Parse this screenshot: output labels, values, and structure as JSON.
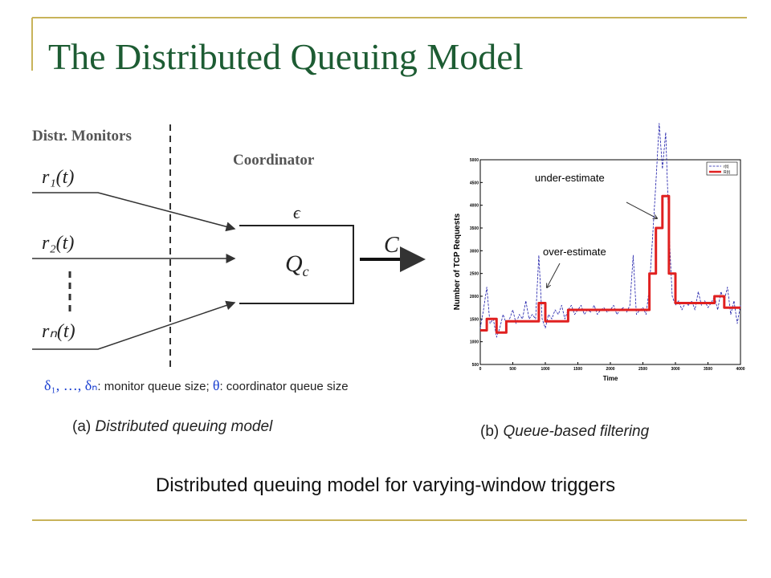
{
  "header": {
    "title": "The Distributed Queuing Model"
  },
  "diagram": {
    "monitors_label": "Distr. Monitors",
    "coordinator_label": "Coordinator",
    "inputs": [
      "r₁(t)",
      "r₂(t)",
      "rₙ(t)"
    ],
    "epsilon": "ϵ",
    "queue": {
      "symbol": "Q",
      "subscript": "c"
    },
    "output": "C",
    "note": [
      "δ₁, …, δₙ",
      ": monitor queue size; ",
      "θ",
      ": coordinator queue size"
    ]
  },
  "captions": {
    "a": {
      "label": "(a) ",
      "text": "Distributed queuing model"
    },
    "b": {
      "label": "(b) ",
      "text": "Queue-based filtering"
    },
    "main": "Distributed queuing model for varying-window triggers"
  },
  "chart_data": {
    "type": "line",
    "x_label": "Time",
    "y_label": "Number of TCP Requests",
    "xlim": [
      0,
      4000
    ],
    "ylim": [
      500,
      5000
    ],
    "xticks": [
      0,
      500,
      1000,
      1500,
      2000,
      2500,
      3000,
      3500,
      4000
    ],
    "yticks": [
      500,
      1000,
      1500,
      2000,
      2500,
      3000,
      3500,
      4000,
      4500,
      5000
    ],
    "legend": "upper right",
    "annotations": [
      "under-estimate",
      "over-estimate"
    ],
    "series": [
      {
        "name": "r(t)",
        "color": "#1a1aa8",
        "dashed": true,
        "x": [
          0,
          50,
          100,
          150,
          200,
          250,
          300,
          350,
          400,
          450,
          500,
          550,
          600,
          650,
          700,
          750,
          800,
          850,
          900,
          950,
          1000,
          1050,
          1100,
          1150,
          1200,
          1250,
          1300,
          1350,
          1400,
          1450,
          1500,
          1550,
          1600,
          1650,
          1700,
          1750,
          1800,
          1850,
          1900,
          1950,
          2000,
          2050,
          2100,
          2150,
          2200,
          2250,
          2300,
          2350,
          2400,
          2450,
          2500,
          2550,
          2600,
          2650,
          2700,
          2750,
          2800,
          2850,
          2900,
          2950,
          3000,
          3050,
          3100,
          3150,
          3200,
          3250,
          3300,
          3350,
          3400,
          3450,
          3500,
          3550,
          3600,
          3650,
          3700,
          3750,
          3800,
          3850,
          3900,
          3950,
          4000
        ],
        "values": [
          1300,
          1700,
          2200,
          1400,
          1500,
          1100,
          1300,
          1600,
          1400,
          1500,
          1700,
          1400,
          1600,
          1500,
          1900,
          1500,
          1600,
          1500,
          2900,
          1500,
          1300,
          1600,
          1500,
          1700,
          1600,
          1800,
          1500,
          1700,
          1800,
          1600,
          1700,
          1800,
          1600,
          1700,
          1650,
          1800,
          1600,
          1700,
          1750,
          1650,
          1700,
          1800,
          1600,
          1700,
          1750,
          1650,
          1800,
          2900,
          1600,
          1700,
          1750,
          1600,
          2200,
          3300,
          4500,
          5800,
          4800,
          5600,
          3500,
          2000,
          1800,
          1900,
          1700,
          1850,
          1800,
          1900,
          1700,
          2100,
          1800,
          1900,
          1750,
          1850,
          2000,
          1700,
          2100,
          1900,
          2200,
          1600,
          1900,
          1400,
          1800
        ]
      },
      {
        "name": "R(t)",
        "color": "#e02020",
        "dashed": false,
        "x": [
          0,
          100,
          100,
          250,
          250,
          400,
          400,
          900,
          900,
          1000,
          1000,
          1350,
          1350,
          2600,
          2600,
          2700,
          2700,
          2800,
          2800,
          2900,
          2900,
          3000,
          3000,
          3600,
          3600,
          3750,
          3750,
          4000
        ],
        "values": [
          1250,
          1250,
          1500,
          1500,
          1200,
          1200,
          1450,
          1450,
          1850,
          1850,
          1450,
          1450,
          1700,
          1700,
          2500,
          2500,
          3500,
          3500,
          4200,
          4200,
          2500,
          2500,
          1850,
          1850,
          2000,
          2000,
          1750,
          1750
        ]
      }
    ]
  }
}
